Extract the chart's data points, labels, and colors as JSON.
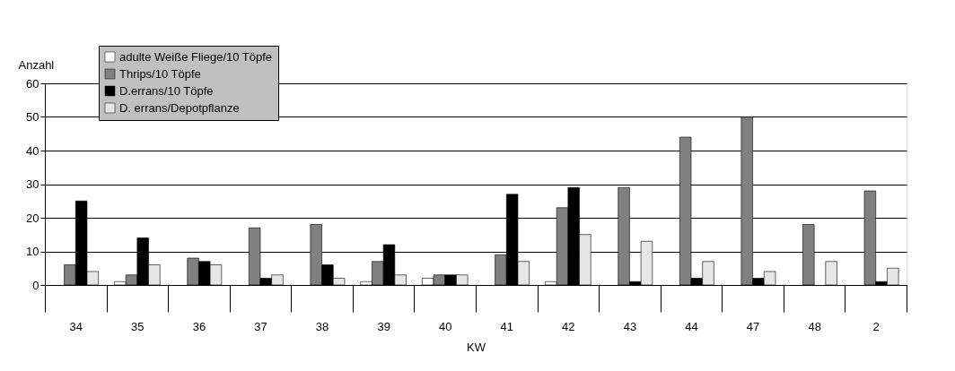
{
  "chart_data": {
    "type": "bar",
    "xlabel": "KW",
    "ylabel": "Anzahl",
    "categories": [
      "34",
      "35",
      "36",
      "37",
      "38",
      "39",
      "40",
      "41",
      "42",
      "43",
      "44",
      "47",
      "48",
      "2"
    ],
    "series": [
      {
        "name": "adulte Weiße Fliege/10 Töpfe",
        "color": "#ffffff",
        "values": [
          0,
          1,
          0,
          0,
          0,
          1,
          2,
          0,
          1,
          0,
          0,
          0,
          0,
          0
        ]
      },
      {
        "name": "Thrips/10 Töpfe",
        "color": "#808080",
        "values": [
          6,
          3,
          8,
          17,
          18,
          7,
          3,
          9,
          23,
          29,
          44,
          50,
          18,
          28
        ]
      },
      {
        "name": "D.errans/10 Töpfe",
        "color": "#000000",
        "values": [
          25,
          14,
          7,
          2,
          6,
          12,
          3,
          27,
          29,
          1,
          2,
          2,
          0,
          1
        ]
      },
      {
        "name": "D. errans/Depotpflanze",
        "color": "#e6e6e6",
        "values": [
          4,
          6,
          6,
          3,
          2,
          3,
          3,
          7,
          15,
          13,
          7,
          4,
          7,
          5
        ]
      }
    ],
    "ylim": [
      0,
      60
    ],
    "yticks": [
      0,
      10,
      20,
      30,
      40,
      50,
      60
    ],
    "grid": "y",
    "legend": "top left"
  }
}
